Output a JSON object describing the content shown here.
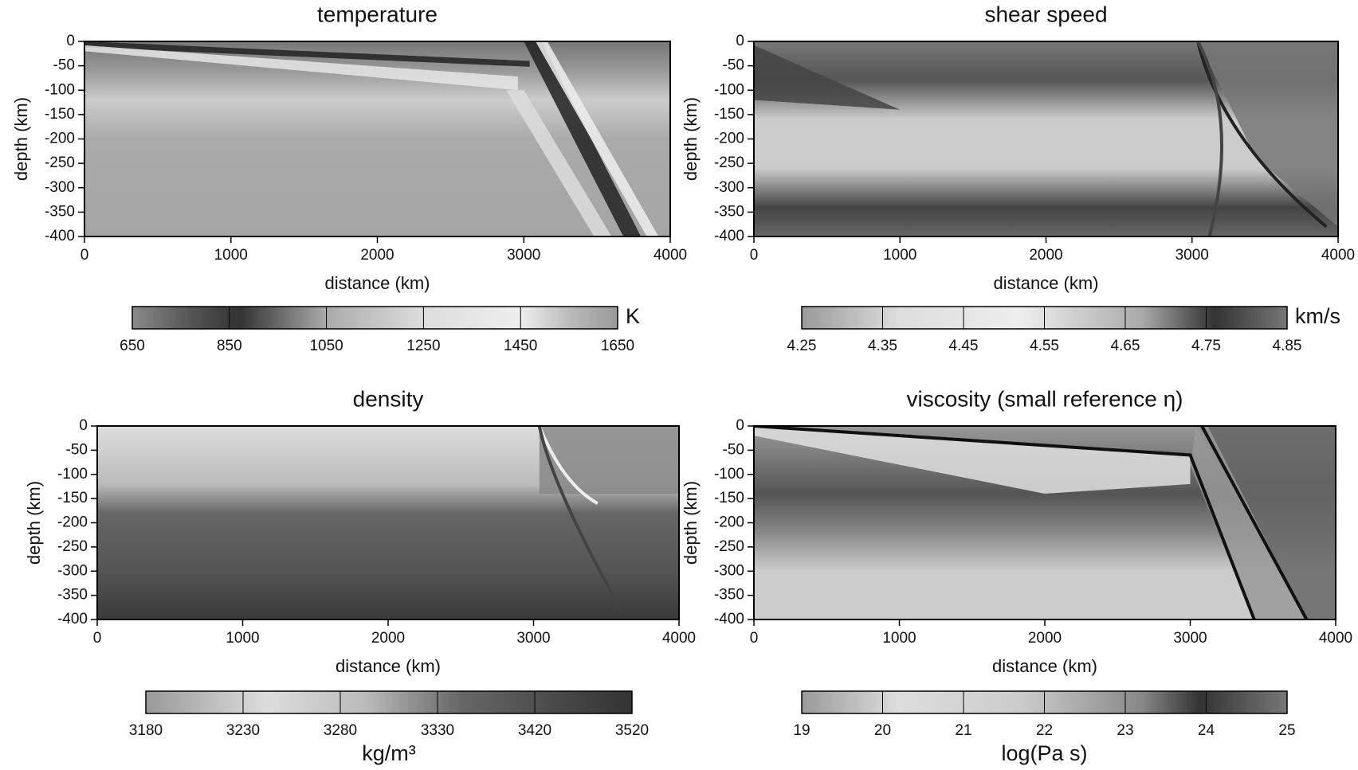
{
  "chart_data": [
    {
      "type": "heatmap",
      "title": "temperature",
      "x_label": "distance (km)",
      "y_label": "depth (km)",
      "xlim": [
        0,
        4000
      ],
      "xticks": [
        0,
        1000,
        2000,
        3000,
        4000
      ],
      "ylim": [
        -400,
        0
      ],
      "yticks": [
        0,
        -50,
        -100,
        -150,
        -200,
        -250,
        -300,
        -350,
        -400
      ],
      "colorbar": {
        "clim": [
          650,
          1650
        ],
        "ticks": [
          650,
          850,
          1050,
          1250,
          1450,
          1650
        ],
        "label": "K",
        "label_position": "right"
      }
    },
    {
      "type": "heatmap",
      "title": "shear speed",
      "x_label": "distance (km)",
      "y_label": "depth (km)",
      "xlim": [
        0,
        4000
      ],
      "xticks": [
        0,
        1000,
        2000,
        3000,
        4000
      ],
      "ylim": [
        -400,
        0
      ],
      "yticks": [
        0,
        -50,
        -100,
        -150,
        -200,
        -250,
        -300,
        -350,
        -400
      ],
      "colorbar": {
        "clim": [
          4.25,
          4.85
        ],
        "ticks": [
          4.25,
          4.35,
          4.45,
          4.55,
          4.65,
          4.75,
          4.85
        ],
        "label": "km/s",
        "label_position": "right"
      }
    },
    {
      "type": "heatmap",
      "title": "density",
      "x_label": "distance (km)",
      "y_label": "depth (km)",
      "xlim": [
        0,
        4000
      ],
      "xticks": [
        0,
        1000,
        2000,
        3000,
        4000
      ],
      "ylim": [
        -400,
        0
      ],
      "yticks": [
        0,
        -50,
        -100,
        -150,
        -200,
        -250,
        -300,
        -350,
        -400
      ],
      "colorbar": {
        "clim": [
          3180,
          3520
        ],
        "ticks": [
          3180,
          3230,
          3280,
          3330,
          3420,
          3520
        ],
        "label": "kg/m³",
        "label_position": "bottom"
      }
    },
    {
      "type": "heatmap",
      "title": "viscosity (small reference η)",
      "x_label": "distance (km)",
      "y_label": "depth (km)",
      "xlim": [
        0,
        4000
      ],
      "xticks": [
        0,
        1000,
        2000,
        3000,
        4000
      ],
      "ylim": [
        -400,
        0
      ],
      "yticks": [
        0,
        -50,
        -100,
        -150,
        -200,
        -250,
        -300,
        -350,
        -400
      ],
      "colorbar": {
        "clim": [
          19,
          25
        ],
        "ticks": [
          19,
          20,
          21,
          22,
          23,
          24,
          25
        ],
        "label": "log(Pa s)",
        "label_position": "bottom"
      }
    }
  ]
}
